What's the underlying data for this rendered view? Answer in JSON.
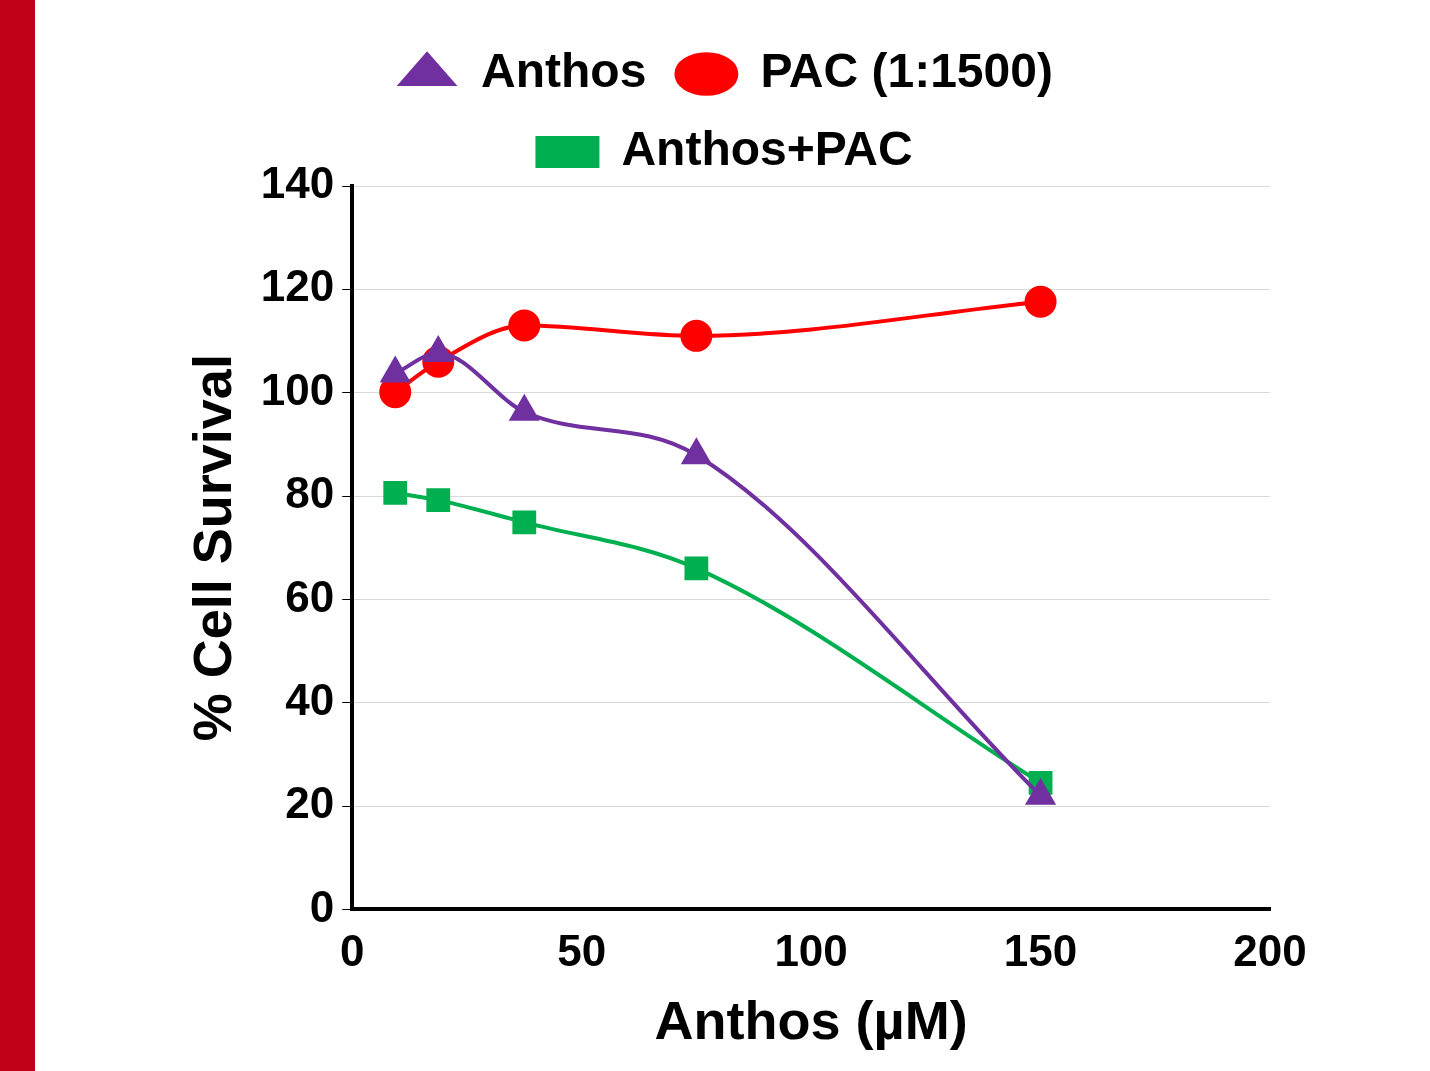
{
  "chart_data": {
    "type": "line",
    "xlabel": "Anthos (µM)",
    "ylabel": "% Cell Survival",
    "x": [
      9.375,
      18.75,
      37.5,
      75,
      150
    ],
    "series": [
      {
        "name": "Anthos",
        "color": "#7030a0",
        "marker": "triangle",
        "values": [
          103.7,
          107.7,
          96.3,
          87.9,
          22
        ]
      },
      {
        "name": "PAC (1:1500)",
        "color": "#ff0000",
        "marker": "circle",
        "values": [
          100.1,
          106,
          113,
          111,
          117.6
        ]
      },
      {
        "name": "Anthos+PAC",
        "color": "#00b050",
        "marker": "square",
        "values": [
          80.6,
          79.2,
          74.9,
          66,
          24.5
        ]
      }
    ],
    "xlim": [
      0,
      200
    ],
    "xticks": [
      0,
      50,
      100,
      150,
      200
    ],
    "ylim": [
      0,
      140
    ],
    "yticks": [
      0,
      20,
      40,
      60,
      80,
      100,
      120,
      140
    ],
    "grid": "y",
    "legend": "top",
    "line_style": "solid"
  }
}
